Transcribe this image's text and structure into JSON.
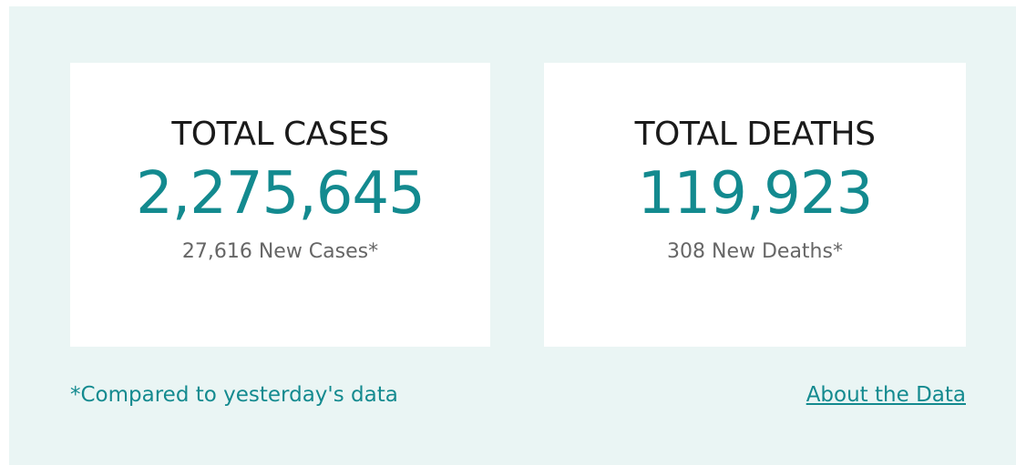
{
  "cards": [
    {
      "title": "TOTAL CASES",
      "value": "2,275,645",
      "subtitle": "27,616 New Cases*"
    },
    {
      "title": "TOTAL DEATHS",
      "value": "119,923",
      "subtitle": "308 New Deaths*"
    }
  ],
  "footnote": "*Compared to yesterday's data",
  "link": "About the Data"
}
